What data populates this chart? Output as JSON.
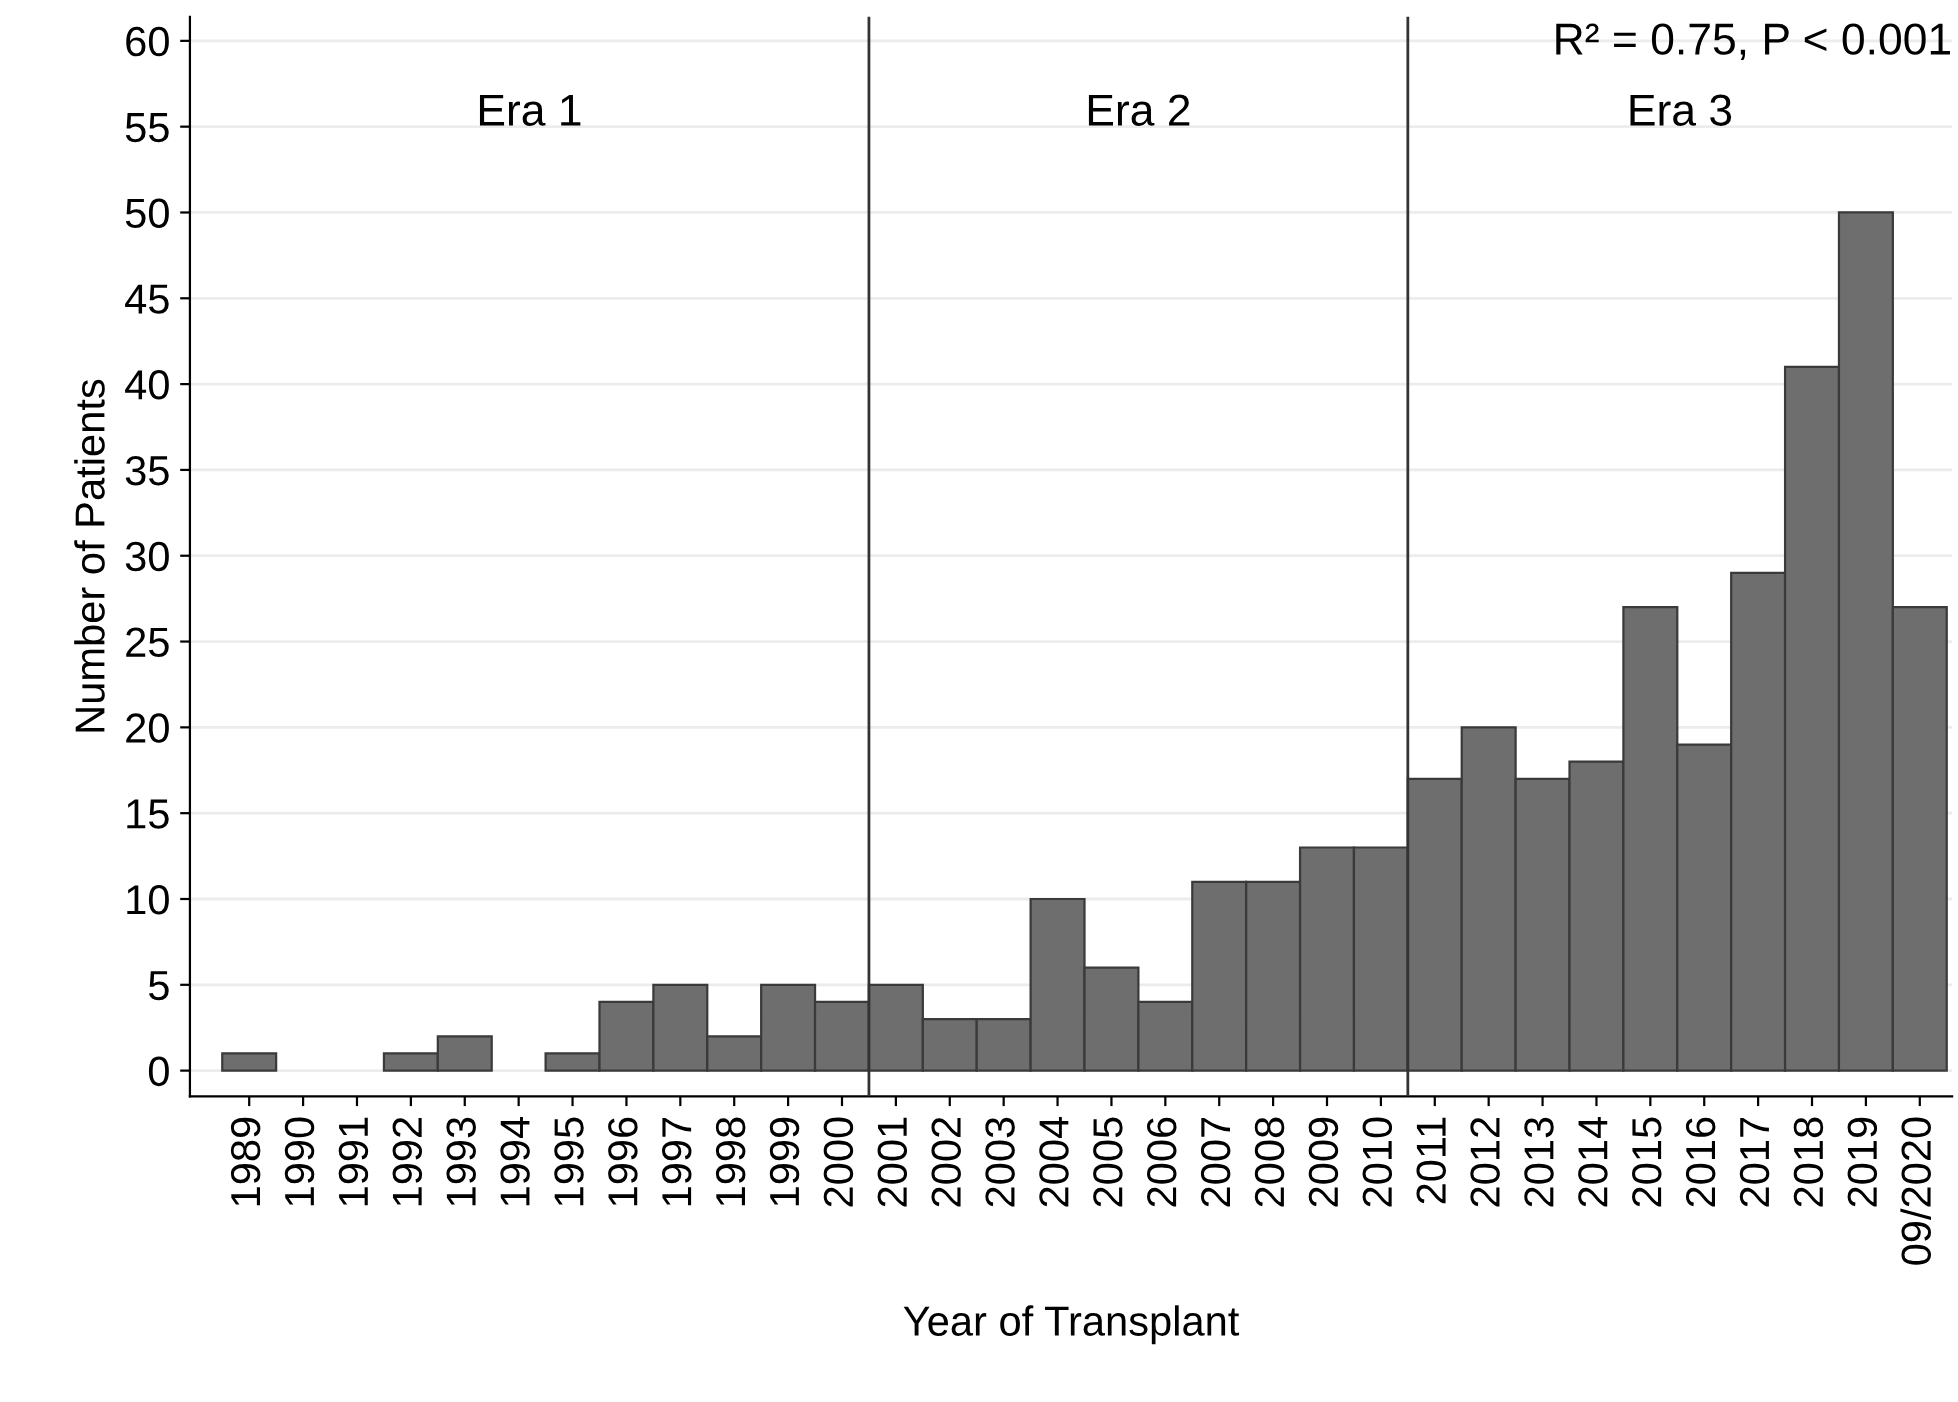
{
  "chart_data": {
    "type": "bar",
    "xlabel": "Year of Transplant",
    "ylabel": "Number of Patients",
    "x": [
      1989,
      1990,
      1991,
      1992,
      1993,
      1994,
      1995,
      1996,
      1997,
      1998,
      1999,
      2000,
      2001,
      2002,
      2003,
      2004,
      2005,
      2006,
      2007,
      2008,
      2009,
      2010,
      2011,
      2012,
      2013,
      2014,
      2015,
      2016,
      2017,
      2018,
      2019,
      2020
    ],
    "values": [
      1,
      0,
      0,
      1,
      2,
      0,
      1,
      4,
      5,
      2,
      5,
      4,
      5,
      3,
      3,
      10,
      6,
      4,
      11,
      11,
      13,
      13,
      17,
      20,
      17,
      18,
      27,
      19,
      29,
      41,
      50,
      27
    ],
    "color": "#6e6e6e",
    "xlim": [
      1987.9,
      2020.6
    ],
    "xticks": [
      1989,
      1990,
      1991,
      1992,
      1993,
      1994,
      1995,
      1996,
      1997,
      1998,
      1999,
      2000,
      2001,
      2002,
      2003,
      2004,
      2005,
      2006,
      2007,
      2008,
      2009,
      2010,
      2011,
      2012,
      2013,
      2014,
      2015,
      2016,
      2017,
      2018,
      2019,
      {
        "value": 2020,
        "label": "09/2020"
      }
    ],
    "ylim": [
      -1.5,
      61.4
    ],
    "yticks": [
      0,
      5,
      10,
      15,
      20,
      25,
      30,
      35,
      40,
      45,
      50,
      55,
      60
    ],
    "grid": "y",
    "ref_lines": [
      {
        "axis": "x",
        "value": 2000.5,
        "color": "#333333"
      },
      {
        "axis": "x",
        "value": 2010.5,
        "color": "#333333"
      }
    ],
    "annotations": [
      "Era 1",
      "Era 2",
      "Era 3",
      "R² = 0.75, P < 0.001"
    ]
  }
}
